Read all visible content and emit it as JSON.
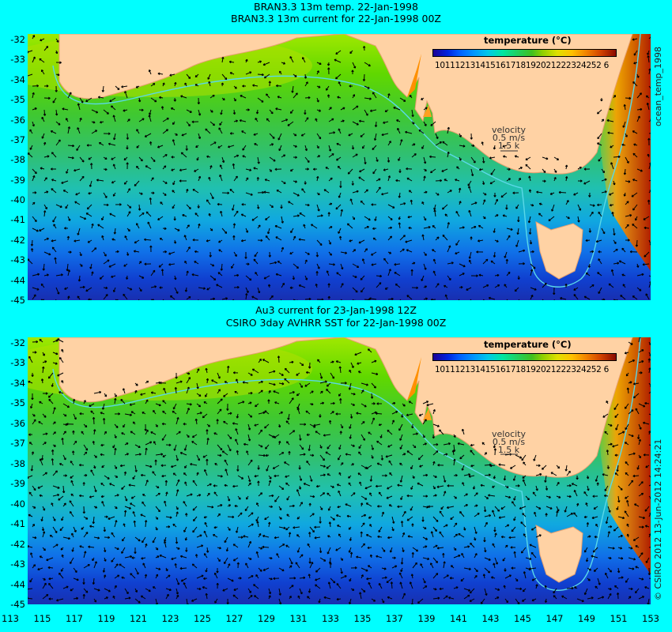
{
  "top_panel": {
    "title_line1": "BRAN3.3 13m temp. 22-Jan-1998",
    "title_line2": "BRAN3.3 13m current for 22-Jan-1998 00Z",
    "colorbar_title": "temperature (°C)",
    "colorbar_ticks": "101112131415161718192021222324252 6",
    "velocity_label": "velocity",
    "velocity_scale": "0.5 m/s",
    "velocity_knots": "1.5 k",
    "side_label": "ocean_temp_1998"
  },
  "bottom_panel": {
    "title_line1": "Au3 current for 23-Jan-1998 12Z",
    "title_line2": "CSIRO 3day AVHRR SST for 22-Jan-1998 00Z",
    "colorbar_title": "temperature (°C)",
    "colorbar_ticks": "101112131415161718192021222324252 6",
    "velocity_label": "velocity",
    "velocity_scale": "0.5 m/s",
    "velocity_knots": "1.5 k",
    "side_label": "© CSIRO 2012  13-Jun-2012 14:24:21"
  },
  "y_axis_labels": [
    "-32",
    "-33",
    "-34",
    "-35",
    "-36",
    "-37",
    "-38",
    "-39",
    "-40",
    "-41",
    "-42",
    "-43",
    "-44",
    "-45"
  ],
  "x_axis_labels": [
    "113",
    "115",
    "117",
    "119",
    "121",
    "123",
    "125",
    "127",
    "129",
    "131",
    "133",
    "135",
    "137",
    "139",
    "141",
    "143",
    "145",
    "147",
    "149",
    "151",
    "153"
  ],
  "colors": {
    "background": "#00ffff",
    "land": "#ffd2a4",
    "arrows": "#000000",
    "shelf_contour": "#5ad8e8"
  }
}
